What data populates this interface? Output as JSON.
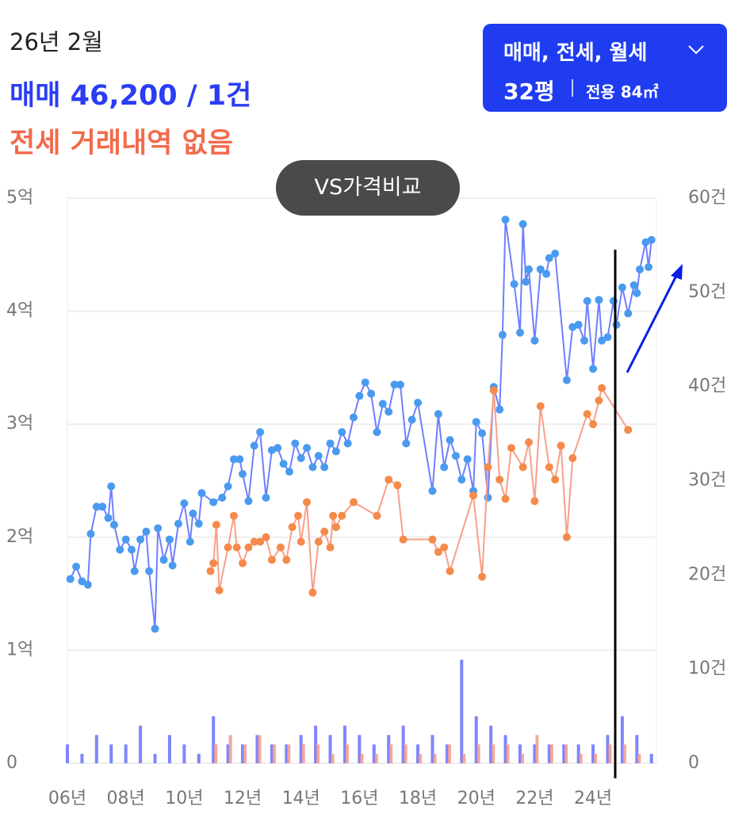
{
  "header": {
    "date": "26년 2월",
    "sale": "매매 46,200 / 1건",
    "jeonse": "전세 거래내역 없음"
  },
  "filter": {
    "types": "매매, 전세, 월세",
    "size": "32평",
    "area": "전용 84㎡"
  },
  "compare_button": "VS가격비교",
  "chart_data": {
    "type": "line",
    "xlim": [
      2006,
      2026.17
    ],
    "xticks": [
      {
        "value": 2006,
        "label": "06년"
      },
      {
        "value": 2008,
        "label": "08년"
      },
      {
        "value": 2010,
        "label": "10년"
      },
      {
        "value": 2012,
        "label": "12년"
      },
      {
        "value": 2014,
        "label": "14년"
      },
      {
        "value": 2016,
        "label": "16년"
      },
      {
        "value": 2018,
        "label": "18년"
      },
      {
        "value": 2020,
        "label": "20년"
      },
      {
        "value": 2022,
        "label": "22년"
      },
      {
        "value": 2024,
        "label": "24년"
      }
    ],
    "ylim": [
      0,
      5
    ],
    "yticks": [
      0,
      {
        "value": 1,
        "label": "1억"
      },
      {
        "value": 2,
        "label": "2억"
      },
      {
        "value": 3,
        "label": "3억"
      },
      {
        "value": 4,
        "label": "4억"
      },
      {
        "value": 5,
        "label": "5억"
      }
    ],
    "y2lim": [
      0,
      60
    ],
    "y2ticks": [
      0,
      {
        "value": 10,
        "label": "10건"
      },
      {
        "value": 20,
        "label": "20건"
      },
      {
        "value": 30,
        "label": "30건"
      },
      {
        "value": 40,
        "label": "40건"
      },
      {
        "value": 50,
        "label": "50건"
      },
      {
        "value": 60,
        "label": "60건"
      }
    ],
    "grid": true,
    "series": [
      {
        "color": "#6f7fff",
        "marker_color": "#4a9af0",
        "x": [
          2006.1,
          2006.3,
          2006.5,
          2006.7,
          2006.8,
          2007.0,
          2007.2,
          2007.4,
          2007.5,
          2007.6,
          2007.8,
          2008.0,
          2008.2,
          2008.3,
          2008.5,
          2008.7,
          2008.8,
          2009.0,
          2009.1,
          2009.3,
          2009.5,
          2009.6,
          2009.8,
          2010.0,
          2010.2,
          2010.3,
          2010.5,
          2010.6,
          2011.0,
          2011.3,
          2011.5,
          2011.7,
          2011.9,
          2012.0,
          2012.2,
          2012.4,
          2012.6,
          2012.8,
          2013.0,
          2013.2,
          2013.4,
          2013.6,
          2013.8,
          2014.0,
          2014.2,
          2014.4,
          2014.6,
          2014.8,
          2015.0,
          2015.2,
          2015.4,
          2015.6,
          2015.8,
          2016.0,
          2016.2,
          2016.4,
          2016.6,
          2016.8,
          2017.0,
          2017.2,
          2017.4,
          2017.6,
          2017.8,
          2018.0,
          2018.5,
          2018.7,
          2018.9,
          2019.1,
          2019.3,
          2019.5,
          2019.7,
          2019.9,
          2020.0,
          2020.2,
          2020.4,
          2020.6,
          2020.8,
          2020.9,
          2021.0,
          2021.3,
          2021.5,
          2021.6,
          2021.7,
          2021.8,
          2022.0,
          2022.2,
          2022.4,
          2022.5,
          2022.7,
          2023.1,
          2023.3,
          2023.5,
          2023.7,
          2023.8,
          2024.0,
          2024.2,
          2024.3,
          2024.5,
          2024.7,
          2024.8,
          2025.0,
          2025.2,
          2025.4,
          2025.5,
          2025.6,
          2025.8,
          2025.9,
          2026.0
        ],
        "values": [
          1.63,
          1.74,
          1.61,
          1.58,
          2.03,
          2.27,
          2.27,
          2.17,
          2.45,
          2.11,
          1.89,
          1.98,
          1.89,
          1.7,
          1.98,
          2.05,
          1.7,
          1.19,
          2.08,
          1.8,
          1.98,
          1.75,
          2.12,
          2.3,
          1.96,
          2.21,
          2.12,
          2.39,
          2.31,
          2.35,
          2.45,
          2.69,
          2.69,
          2.56,
          2.32,
          2.81,
          2.93,
          2.35,
          2.77,
          2.79,
          2.65,
          2.58,
          2.83,
          2.7,
          2.79,
          2.62,
          2.72,
          2.62,
          2.83,
          2.76,
          2.93,
          2.83,
          3.06,
          3.25,
          3.37,
          3.27,
          2.93,
          3.18,
          3.11,
          3.35,
          3.35,
          2.83,
          3.04,
          3.19,
          2.41,
          3.09,
          2.62,
          2.86,
          2.72,
          2.51,
          2.69,
          2.41,
          3.02,
          2.92,
          2.35,
          3.33,
          3.13,
          3.79,
          4.81,
          4.24,
          3.81,
          4.77,
          4.26,
          4.37,
          3.74,
          4.37,
          4.33,
          4.47,
          4.51,
          3.39,
          3.86,
          3.88,
          3.74,
          4.09,
          3.49,
          4.1,
          3.74,
          3.77,
          4.09,
          3.88,
          4.21,
          3.98,
          4.23,
          4.16,
          4.37,
          4.61,
          4.39,
          4.63
        ]
      },
      {
        "color": "#f7a088",
        "marker_color": "#f58a4a",
        "x": [
          2010.9,
          2011.0,
          2011.1,
          2011.2,
          2011.5,
          2011.7,
          2011.8,
          2012.0,
          2012.2,
          2012.4,
          2012.6,
          2012.8,
          2013.0,
          2013.3,
          2013.5,
          2013.7,
          2013.9,
          2014.0,
          2014.2,
          2014.4,
          2014.6,
          2014.8,
          2015.0,
          2015.1,
          2015.2,
          2015.4,
          2015.8,
          2016.6,
          2017.0,
          2017.3,
          2017.5,
          2018.5,
          2018.7,
          2018.9,
          2019.1,
          2019.9,
          2020.2,
          2020.4,
          2020.6,
          2020.8,
          2021.0,
          2021.2,
          2021.6,
          2021.8,
          2022.0,
          2022.2,
          2022.5,
          2022.7,
          2022.9,
          2023.1,
          2023.3,
          2023.8,
          2024.0,
          2024.2,
          2024.3,
          2025.2
        ],
        "values": [
          1.7,
          1.77,
          2.11,
          1.53,
          1.91,
          2.19,
          1.91,
          1.77,
          1.91,
          1.96,
          1.96,
          2.0,
          1.8,
          1.91,
          1.8,
          2.09,
          2.19,
          1.96,
          2.31,
          1.51,
          1.96,
          2.05,
          1.91,
          2.19,
          2.09,
          2.19,
          2.31,
          2.19,
          2.51,
          2.46,
          1.98,
          1.98,
          1.87,
          1.91,
          1.7,
          2.37,
          1.65,
          2.62,
          3.3,
          2.51,
          2.34,
          2.79,
          2.62,
          2.84,
          2.32,
          3.16,
          2.62,
          2.51,
          2.81,
          2.0,
          2.7,
          3.09,
          3.0,
          3.21,
          3.32,
          2.95
        ]
      }
    ],
    "volume": [
      {
        "color": "#6670ff",
        "axis": "y2",
        "x": [
          2006,
          2006.5,
          2007,
          2007.5,
          2008,
          2008.5,
          2009,
          2009.5,
          2010,
          2010.5,
          2011,
          2011.5,
          2012,
          2012.5,
          2013,
          2013.5,
          2014,
          2014.5,
          2015,
          2015.5,
          2016,
          2016.5,
          2017,
          2017.5,
          2018,
          2018.5,
          2019,
          2019.5,
          2020,
          2020.5,
          2021,
          2021.5,
          2022,
          2022.5,
          2023,
          2023.5,
          2024,
          2024.5,
          2025,
          2025.5,
          2026
        ],
        "values": [
          2,
          1,
          3,
          2,
          2,
          4,
          1,
          3,
          2,
          1,
          5,
          2,
          2,
          3,
          2,
          2,
          3,
          4,
          3,
          4,
          3,
          2,
          3,
          4,
          2,
          3,
          2,
          11,
          5,
          4,
          3,
          2,
          2,
          2,
          2,
          2,
          2,
          3,
          5,
          3,
          1
        ]
      },
      {
        "color": "#f2998a",
        "axis": "y2",
        "x": [
          2011,
          2011.5,
          2012,
          2012.5,
          2013,
          2013.5,
          2014,
          2014.5,
          2015,
          2015.5,
          2016,
          2016.5,
          2017,
          2017.5,
          2018,
          2018.5,
          2019,
          2019.5,
          2020,
          2020.5,
          2021,
          2021.5,
          2022,
          2022.5,
          2023,
          2023.5,
          2024,
          2024.5,
          2025,
          2025.5
        ],
        "values": [
          2,
          3,
          2,
          3,
          2,
          2,
          2,
          2,
          1,
          2,
          1,
          1,
          2,
          2,
          1,
          1,
          2,
          1,
          2,
          2,
          2,
          1,
          3,
          2,
          2,
          1,
          1,
          2,
          2,
          1
        ]
      }
    ]
  }
}
